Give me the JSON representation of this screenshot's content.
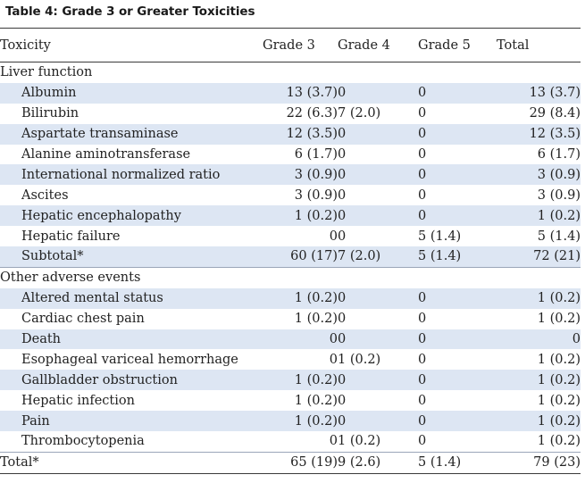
{
  "table": {
    "title": "Table 4: Grade 3 or Greater Toxicities",
    "headers": [
      "Toxicity",
      "Grade 3",
      "Grade 4",
      "Grade 5",
      "Total"
    ],
    "rows": [
      {
        "name": "Liver function",
        "type": "section",
        "g3": "",
        "g4": "",
        "g5": "",
        "total": ""
      },
      {
        "name": "Albumin",
        "type": "item",
        "g3": "13 (3.7)",
        "g4": "0",
        "g5": "0",
        "total": "13 (3.7)"
      },
      {
        "name": "Bilirubin",
        "type": "item",
        "g3": "22 (6.3)",
        "g4": "7 (2.0)",
        "g5": "0",
        "total": "29 (8.4)"
      },
      {
        "name": "Aspartate transaminase",
        "type": "item",
        "g3": "12 (3.5)",
        "g4": "0",
        "g5": "0",
        "total": "12 (3.5)"
      },
      {
        "name": "Alanine aminotransferase",
        "type": "item",
        "g3": "6 (1.7)",
        "g4": "0",
        "g5": "0",
        "total": "6 (1.7)"
      },
      {
        "name": "International normalized ratio",
        "type": "item",
        "g3": "3 (0.9)",
        "g4": "0",
        "g5": "0",
        "total": "3 (0.9)"
      },
      {
        "name": "Ascites",
        "type": "item",
        "g3": "3 (0.9)",
        "g4": "0",
        "g5": "0",
        "total": "3 (0.9)"
      },
      {
        "name": "Hepatic encephalopathy",
        "type": "item",
        "g3": "1 (0.2)",
        "g4": "0",
        "g5": "0",
        "total": "1 (0.2)"
      },
      {
        "name": "Hepatic failure",
        "type": "item",
        "g3": "0",
        "g4": "0",
        "g5": "5 (1.4)",
        "total": "5 (1.4)"
      },
      {
        "name": "Subtotal*",
        "type": "item",
        "g3": "60 (17)",
        "g4": "7 (2.0)",
        "g5": "5 (1.4)",
        "total": "72 (21)"
      },
      {
        "name": "Other adverse events",
        "type": "section",
        "g3": "",
        "g4": "",
        "g5": "",
        "total": ""
      },
      {
        "name": "Altered mental status",
        "type": "item",
        "g3": "1 (0.2)",
        "g4": "0",
        "g5": "0",
        "total": "1 (0.2)"
      },
      {
        "name": "Cardiac chest pain",
        "type": "item",
        "g3": "1 (0.2)",
        "g4": "0",
        "g5": "0",
        "total": "1 (0.2)"
      },
      {
        "name": "Death",
        "type": "item",
        "g3": "0",
        "g4": "0",
        "g5": "0",
        "total": "0"
      },
      {
        "name": "Esophageal variceal hemorrhage",
        "type": "item",
        "g3": "0",
        "g4": "1 (0.2)",
        "g5": "0",
        "total": "1 (0.2)"
      },
      {
        "name": "Gallbladder obstruction",
        "type": "item",
        "g3": "1 (0.2)",
        "g4": "0",
        "g5": "0",
        "total": "1 (0.2)"
      },
      {
        "name": "Hepatic infection",
        "type": "item",
        "g3": "1 (0.2)",
        "g4": "0",
        "g5": "0",
        "total": "1 (0.2)"
      },
      {
        "name": "Pain",
        "type": "item",
        "g3": "1 (0.2)",
        "g4": "0",
        "g5": "0",
        "total": "1 (0.2)"
      },
      {
        "name": "Thrombocytopenia",
        "type": "item",
        "g3": "0",
        "g4": "1 (0.2)",
        "g5": "0",
        "total": "1 (0.2)"
      },
      {
        "name": "Total*",
        "type": "final",
        "g3": "65 (19)",
        "g4": "9 (2.6)",
        "g5": "5 (1.4)",
        "total": "79 (23)"
      }
    ]
  }
}
